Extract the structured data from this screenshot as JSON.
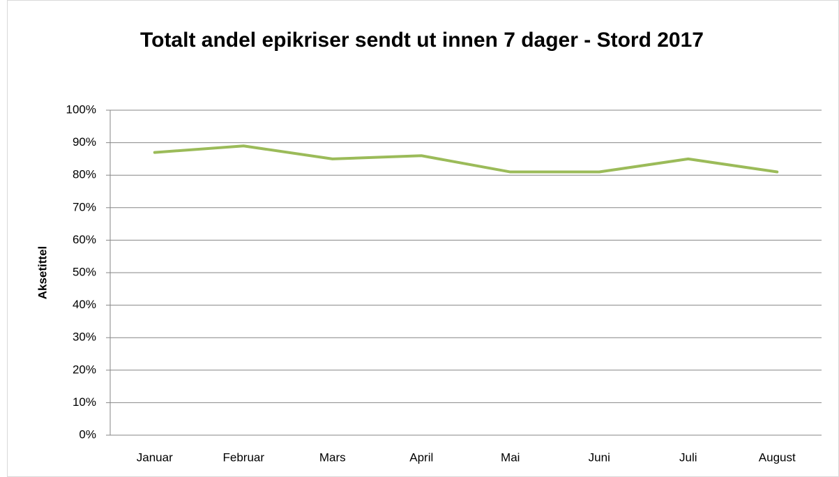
{
  "chart_data": {
    "type": "line",
    "title": "Totalt andel epikriser sendt ut innen 7 dager - Stord 2017",
    "y_label": "Aksetittel",
    "categories": [
      "Januar",
      "Februar",
      "Mars",
      "April",
      "Mai",
      "Juni",
      "Juli",
      "August"
    ],
    "series": [
      {
        "color": "#9bbb59",
        "values": [
          87,
          89,
          85,
          86,
          81,
          81,
          85,
          81
        ]
      }
    ],
    "ylim": [
      0,
      100
    ],
    "yticks": [
      {
        "value": 0,
        "label": "0%"
      },
      {
        "value": 10,
        "label": "10%"
      },
      {
        "value": 20,
        "label": "20%"
      },
      {
        "value": 30,
        "label": "30%"
      },
      {
        "value": 40,
        "label": "40%"
      },
      {
        "value": 50,
        "label": "50%"
      },
      {
        "value": 60,
        "label": "60%"
      },
      {
        "value": 70,
        "label": "70%"
      },
      {
        "value": 80,
        "label": "80%"
      },
      {
        "value": 90,
        "label": "90%"
      },
      {
        "value": 100,
        "label": "100%"
      }
    ],
    "grid": true
  }
}
